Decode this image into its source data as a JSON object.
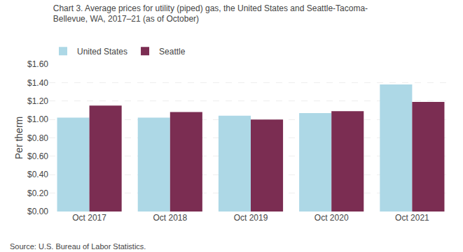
{
  "chart_data": {
    "type": "bar",
    "title": [
      "Chart 3. Average prices for utility (piped) gas, the United States and Seattle-Tacoma-",
      "Bellevue, WA, 2017–21 (as of October)"
    ],
    "y_label": "Per therm",
    "source": "Source: U.S. Bureau of Labor Statistics.",
    "categories": [
      "Oct 2017",
      "Oct 2018",
      "Oct 2019",
      "Oct 2020",
      "Oct 2021"
    ],
    "series": [
      {
        "name": "United States",
        "color": "#ADD8E6",
        "values": [
          1.02,
          1.02,
          1.04,
          1.07,
          1.38
        ]
      },
      {
        "name": "Seattle",
        "color": "#7B2D52",
        "values": [
          1.15,
          1.08,
          1.0,
          1.09,
          1.19
        ]
      }
    ],
    "ylim": [
      0,
      1.6
    ],
    "yticks": [
      {
        "value": 0,
        "label": "$0.00"
      },
      {
        "value": 0.2,
        "label": "$0.20"
      },
      {
        "value": 0.4,
        "label": "$0.40"
      },
      {
        "value": 0.6,
        "label": "$0.60"
      },
      {
        "value": 0.8,
        "label": "$0.80"
      },
      {
        "value": 1.0,
        "label": "$1.00"
      },
      {
        "value": 1.2,
        "label": "$1.20"
      },
      {
        "value": 1.4,
        "label": "$1.40"
      },
      {
        "value": 1.6,
        "label": "$1.60"
      }
    ],
    "grid": true,
    "legend": "top"
  }
}
